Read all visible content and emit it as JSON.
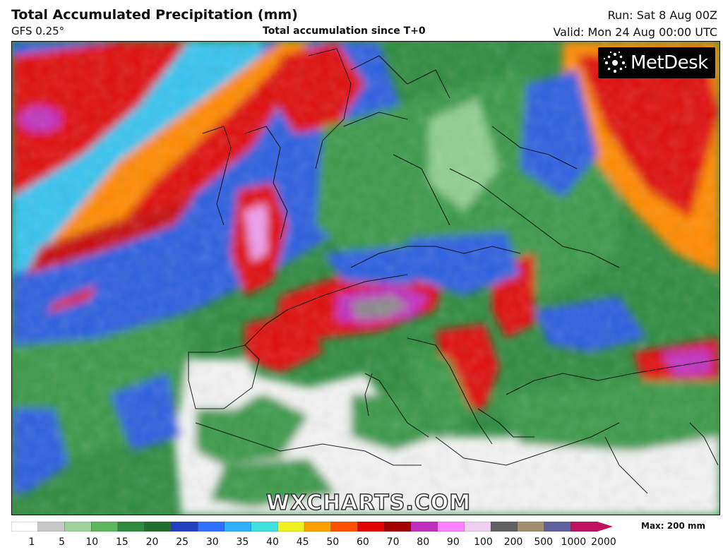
{
  "header": {
    "title": "Total Accumulated Precipitation (mm)",
    "model": "GFS 0.25°",
    "subtitle": "Total accumulation since T+0",
    "run": "Run: Sat 8 Aug 00Z",
    "valid": "Valid: Mon 24 Aug 00:00 UTC"
  },
  "logo": {
    "text": "MetDesk"
  },
  "watermark": "WXCHARTS.COM",
  "legend": {
    "max_label": "Max: 200 mm",
    "ticks": [
      "1",
      "5",
      "10",
      "15",
      "20",
      "25",
      "30",
      "35",
      "40",
      "45",
      "50",
      "60",
      "70",
      "80",
      "90",
      "100",
      "200",
      "500",
      "1000",
      "2000"
    ],
    "colors": [
      "#ffffff",
      "#c8c8c8",
      "#9fd49f",
      "#5cb85c",
      "#2e8b3e",
      "#1f6f2f",
      "#2040c0",
      "#3070ff",
      "#30b0ff",
      "#40e0e0",
      "#f0f020",
      "#ffa000",
      "#ff5000",
      "#e00000",
      "#a00000",
      "#c030c0",
      "#ff80ff",
      "#f0d0f0",
      "#606060",
      "#a09070",
      "#6060a0",
      "#c01060"
    ]
  },
  "map": {
    "region": "Europe",
    "palette": {
      "sea_low": "#2e8b3e",
      "dry": "#f4f4f4",
      "blue": "#2f5fe0",
      "cyan": "#35c4f0",
      "yellow": "#f2e830",
      "orange": "#ff8a00",
      "red": "#e01010",
      "darkred": "#a00010",
      "purple": "#c030c0",
      "pink": "#f0a0f0",
      "grey": "#8a8a8a",
      "border": "#000000"
    }
  }
}
